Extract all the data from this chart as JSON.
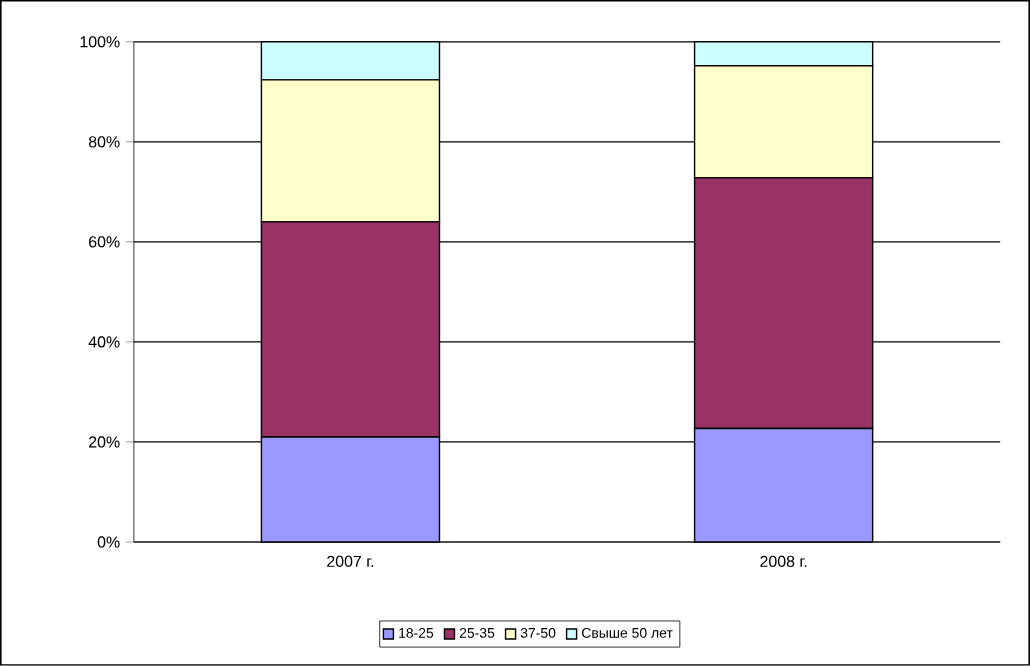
{
  "chart_data": {
    "type": "bar",
    "stacked": true,
    "categories": [
      "2007 г.",
      "2008 г."
    ],
    "series": [
      {
        "name": "18-25",
        "color": "#9999ff",
        "values": [
          21,
          22.7
        ]
      },
      {
        "name": "25-35",
        "color": "#993366",
        "values": [
          43,
          50.1
        ]
      },
      {
        "name": "37-50",
        "color": "#ffffcc",
        "values": [
          28.4,
          22.4
        ]
      },
      {
        "name": "Свыше 50 лет",
        "color": "#ccffff",
        "values": [
          7.6,
          4.8
        ]
      }
    ],
    "ylim": [
      0,
      100
    ],
    "yticks": [
      {
        "value": 0,
        "label": "0%"
      },
      {
        "value": 20,
        "label": "20%"
      },
      {
        "value": 40,
        "label": "40%"
      },
      {
        "value": 60,
        "label": "60%"
      },
      {
        "value": 80,
        "label": "80%"
      },
      {
        "value": 100,
        "label": "100%"
      }
    ],
    "grid": "y",
    "legend": "bottom"
  }
}
